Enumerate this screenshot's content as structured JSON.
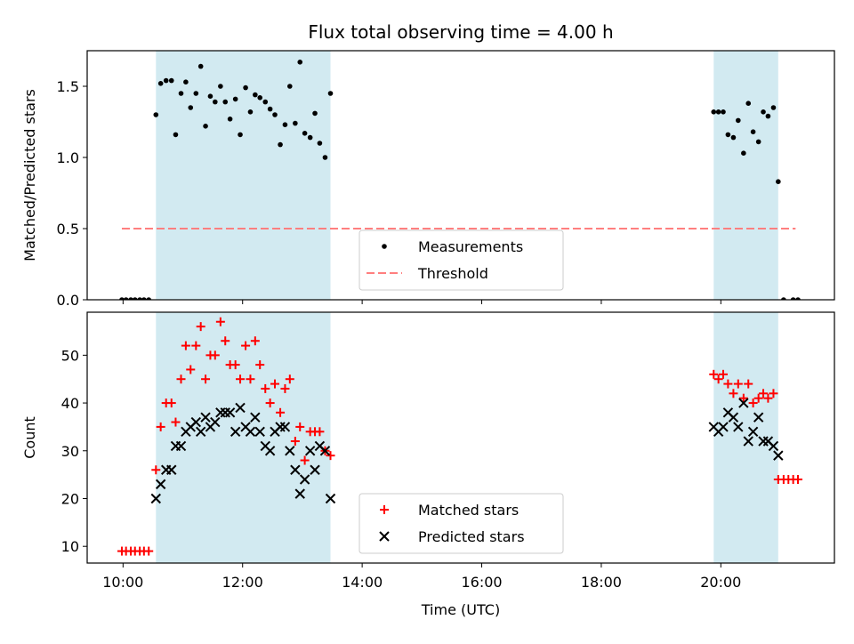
{
  "chart_data": {
    "title": "Flux total observing time = 4.00 h",
    "xlabel": "Time (UTC)",
    "x_unit": "hours UTC",
    "xlim": [
      9.4,
      21.9
    ],
    "x_ticks": [
      10,
      12,
      14,
      16,
      18,
      20
    ],
    "x_tick_labels": [
      "10:00",
      "12:00",
      "14:00",
      "16:00",
      "18:00",
      "20:00"
    ],
    "shaded_intervals": [
      [
        10.55,
        13.47
      ],
      [
        19.88,
        20.96
      ]
    ],
    "shade_color": "#add8e6",
    "panels": [
      {
        "type": "scatter",
        "ylabel": "Matched/Predicted stars",
        "ylim": [
          0,
          1.75
        ],
        "y_ticks": [
          0.0,
          0.5,
          1.0,
          1.5
        ],
        "y_tick_labels": [
          "0.0",
          "0.5",
          "1.0",
          "1.5"
        ],
        "legend_position": "bottom-center",
        "threshold": {
          "name": "Threshold",
          "value": 0.5,
          "x_range": [
            9.98,
            21.25
          ],
          "color": "#ff7f7f",
          "style": "dashed"
        },
        "series": [
          {
            "name": "Measurements",
            "color": "#000000",
            "marker": "dot",
            "points": [
              [
                9.98,
                0
              ],
              [
                10.05,
                0
              ],
              [
                10.13,
                0
              ],
              [
                10.2,
                0
              ],
              [
                10.28,
                0
              ],
              [
                10.35,
                0
              ],
              [
                10.43,
                0
              ],
              [
                10.55,
                1.3
              ],
              [
                10.63,
                1.52
              ],
              [
                10.72,
                1.54
              ],
              [
                10.81,
                1.54
              ],
              [
                10.88,
                1.16
              ],
              [
                10.97,
                1.45
              ],
              [
                11.05,
                1.53
              ],
              [
                11.13,
                1.35
              ],
              [
                11.22,
                1.45
              ],
              [
                11.3,
                1.64
              ],
              [
                11.38,
                1.22
              ],
              [
                11.46,
                1.43
              ],
              [
                11.54,
                1.39
              ],
              [
                11.63,
                1.5
              ],
              [
                11.71,
                1.39
              ],
              [
                11.79,
                1.27
              ],
              [
                11.88,
                1.41
              ],
              [
                11.96,
                1.16
              ],
              [
                12.05,
                1.49
              ],
              [
                12.13,
                1.32
              ],
              [
                12.21,
                1.44
              ],
              [
                12.29,
                1.42
              ],
              [
                12.38,
                1.39
              ],
              [
                12.46,
                1.34
              ],
              [
                12.54,
                1.3
              ],
              [
                12.63,
                1.09
              ],
              [
                12.71,
                1.23
              ],
              [
                12.79,
                1.5
              ],
              [
                12.88,
                1.24
              ],
              [
                12.96,
                1.67
              ],
              [
                13.04,
                1.17
              ],
              [
                13.13,
                1.14
              ],
              [
                13.21,
                1.31
              ],
              [
                13.29,
                1.1
              ],
              [
                13.38,
                1.0
              ],
              [
                13.47,
                1.45
              ],
              [
                19.88,
                1.32
              ],
              [
                19.96,
                1.32
              ],
              [
                20.04,
                1.32
              ],
              [
                20.12,
                1.16
              ],
              [
                20.21,
                1.14
              ],
              [
                20.29,
                1.26
              ],
              [
                20.38,
                1.03
              ],
              [
                20.46,
                1.38
              ],
              [
                20.54,
                1.18
              ],
              [
                20.63,
                1.11
              ],
              [
                20.71,
                1.32
              ],
              [
                20.79,
                1.29
              ],
              [
                20.88,
                1.35
              ],
              [
                20.96,
                0.83
              ],
              [
                21.05,
                0
              ],
              [
                21.21,
                0
              ],
              [
                21.29,
                0
              ]
            ]
          }
        ]
      },
      {
        "type": "scatter",
        "ylabel": "Count",
        "ylim": [
          6.5,
          59
        ],
        "y_ticks": [
          10,
          20,
          30,
          40,
          50
        ],
        "y_tick_labels": [
          "10",
          "20",
          "30",
          "40",
          "50"
        ],
        "legend_position": "bottom-center",
        "series": [
          {
            "name": "Matched stars",
            "color": "#ff0000",
            "marker": "plus",
            "points": [
              [
                9.98,
                9
              ],
              [
                10.05,
                9
              ],
              [
                10.13,
                9
              ],
              [
                10.2,
                9
              ],
              [
                10.28,
                9
              ],
              [
                10.35,
                9
              ],
              [
                10.43,
                9
              ],
              [
                10.55,
                26
              ],
              [
                10.63,
                35
              ],
              [
                10.72,
                40
              ],
              [
                10.81,
                40
              ],
              [
                10.88,
                36
              ],
              [
                10.97,
                45
              ],
              [
                11.05,
                52
              ],
              [
                11.13,
                47
              ],
              [
                11.22,
                52
              ],
              [
                11.3,
                56
              ],
              [
                11.38,
                45
              ],
              [
                11.46,
                50
              ],
              [
                11.54,
                50
              ],
              [
                11.63,
                57
              ],
              [
                11.71,
                53
              ],
              [
                11.79,
                48
              ],
              [
                11.88,
                48
              ],
              [
                11.96,
                45
              ],
              [
                12.05,
                52
              ],
              [
                12.13,
                45
              ],
              [
                12.21,
                53
              ],
              [
                12.29,
                48
              ],
              [
                12.38,
                43
              ],
              [
                12.46,
                40
              ],
              [
                12.54,
                44
              ],
              [
                12.63,
                38
              ],
              [
                12.71,
                43
              ],
              [
                12.79,
                45
              ],
              [
                12.88,
                32
              ],
              [
                12.96,
                35
              ],
              [
                13.04,
                28
              ],
              [
                13.13,
                34
              ],
              [
                13.21,
                34
              ],
              [
                13.29,
                34
              ],
              [
                13.38,
                30
              ],
              [
                13.47,
                29
              ],
              [
                19.88,
                46
              ],
              [
                19.96,
                45
              ],
              [
                20.04,
                46
              ],
              [
                20.12,
                44
              ],
              [
                20.21,
                42
              ],
              [
                20.29,
                44
              ],
              [
                20.38,
                41
              ],
              [
                20.46,
                44
              ],
              [
                20.54,
                40
              ],
              [
                20.63,
                41
              ],
              [
                20.71,
                42
              ],
              [
                20.79,
                41
              ],
              [
                20.88,
                42
              ],
              [
                20.96,
                24
              ],
              [
                21.05,
                24
              ],
              [
                21.13,
                24
              ],
              [
                21.21,
                24
              ],
              [
                21.29,
                24
              ]
            ]
          },
          {
            "name": "Predicted stars",
            "color": "#000000",
            "marker": "x",
            "points": [
              [
                10.55,
                20
              ],
              [
                10.63,
                23
              ],
              [
                10.72,
                26
              ],
              [
                10.81,
                26
              ],
              [
                10.88,
                31
              ],
              [
                10.97,
                31
              ],
              [
                11.05,
                34
              ],
              [
                11.13,
                35
              ],
              [
                11.22,
                36
              ],
              [
                11.3,
                34
              ],
              [
                11.38,
                37
              ],
              [
                11.46,
                35
              ],
              [
                11.54,
                36
              ],
              [
                11.63,
                38
              ],
              [
                11.71,
                38
              ],
              [
                11.79,
                38
              ],
              [
                11.88,
                34
              ],
              [
                11.96,
                39
              ],
              [
                12.05,
                35
              ],
              [
                12.13,
                34
              ],
              [
                12.21,
                37
              ],
              [
                12.29,
                34
              ],
              [
                12.38,
                31
              ],
              [
                12.46,
                30
              ],
              [
                12.54,
                34
              ],
              [
                12.63,
                35
              ],
              [
                12.71,
                35
              ],
              [
                12.79,
                30
              ],
              [
                12.88,
                26
              ],
              [
                12.96,
                21
              ],
              [
                13.04,
                24
              ],
              [
                13.13,
                30
              ],
              [
                13.21,
                26
              ],
              [
                13.29,
                31
              ],
              [
                13.38,
                30
              ],
              [
                13.47,
                20
              ],
              [
                19.88,
                35
              ],
              [
                19.96,
                34
              ],
              [
                20.04,
                35
              ],
              [
                20.12,
                38
              ],
              [
                20.21,
                37
              ],
              [
                20.29,
                35
              ],
              [
                20.38,
                40
              ],
              [
                20.46,
                32
              ],
              [
                20.54,
                34
              ],
              [
                20.63,
                37
              ],
              [
                20.71,
                32
              ],
              [
                20.79,
                32
              ],
              [
                20.88,
                31
              ],
              [
                20.96,
                29
              ]
            ]
          }
        ]
      }
    ]
  }
}
